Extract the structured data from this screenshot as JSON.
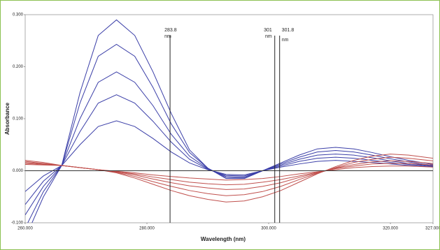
{
  "chart_data": {
    "type": "line",
    "xlabel": "Wavelength (nm)",
    "ylabel": "Absorbance",
    "x": [
      260,
      263,
      266,
      269,
      272,
      275,
      278,
      281,
      284,
      287,
      290,
      293,
      296,
      299,
      302,
      305,
      308,
      311,
      314,
      317,
      320,
      323,
      327
    ],
    "series": [
      {
        "color": "#3b3fa8",
        "values": [
          -0.13,
          -0.05,
          0.01,
          0.15,
          0.26,
          0.29,
          0.26,
          0.19,
          0.11,
          0.04,
          0.005,
          -0.015,
          -0.015,
          0.0,
          0.015,
          0.03,
          0.042,
          0.045,
          0.042,
          0.035,
          0.027,
          0.02,
          0.012
        ]
      },
      {
        "color": "#3b3fa8",
        "values": [
          -0.11,
          -0.04,
          0.01,
          0.13,
          0.22,
          0.243,
          0.22,
          0.16,
          0.09,
          0.035,
          0.005,
          -0.013,
          -0.014,
          0,
          0.013,
          0.026,
          0.036,
          0.039,
          0.036,
          0.03,
          0.023,
          0.017,
          0.01
        ]
      },
      {
        "color": "#3b3fa8",
        "values": [
          -0.085,
          -0.03,
          0.01,
          0.1,
          0.17,
          0.19,
          0.17,
          0.125,
          0.07,
          0.028,
          0.004,
          -0.011,
          -0.012,
          0,
          0.011,
          0.022,
          0.03,
          0.032,
          0.03,
          0.025,
          0.019,
          0.014,
          0.009
        ]
      },
      {
        "color": "#3b3fa8",
        "values": [
          -0.065,
          -0.02,
          0.01,
          0.075,
          0.13,
          0.146,
          0.13,
          0.095,
          0.055,
          0.022,
          0.003,
          -0.009,
          -0.01,
          0,
          0.009,
          0.018,
          0.024,
          0.026,
          0.024,
          0.02,
          0.016,
          0.012,
          0.008
        ]
      },
      {
        "color": "#3b3fa8",
        "values": [
          -0.04,
          -0.01,
          0.01,
          0.05,
          0.085,
          0.096,
          0.085,
          0.062,
          0.036,
          0.015,
          0.002,
          -0.007,
          -0.008,
          0,
          0.007,
          0.013,
          0.018,
          0.02,
          0.018,
          0.016,
          0.013,
          0.01,
          0.007
        ]
      },
      {
        "color": "#c0504d",
        "values": [
          0.02,
          0.016,
          0.01,
          0.006,
          0.002,
          -0.004,
          -0.014,
          -0.026,
          -0.038,
          -0.048,
          -0.055,
          -0.06,
          -0.058,
          -0.05,
          -0.038,
          -0.022,
          -0.006,
          0.008,
          0.02,
          0.028,
          0.032,
          0.03,
          0.024
        ]
      },
      {
        "color": "#c0504d",
        "values": [
          0.018,
          0.014,
          0.01,
          0.006,
          0.002,
          -0.003,
          -0.011,
          -0.021,
          -0.03,
          -0.038,
          -0.044,
          -0.048,
          -0.046,
          -0.04,
          -0.03,
          -0.017,
          -0.005,
          0.006,
          0.016,
          0.022,
          0.026,
          0.024,
          0.019
        ]
      },
      {
        "color": "#c0504d",
        "values": [
          0.016,
          0.013,
          0.01,
          0.006,
          0.002,
          -0.002,
          -0.008,
          -0.016,
          -0.023,
          -0.029,
          -0.033,
          -0.036,
          -0.035,
          -0.03,
          -0.023,
          -0.013,
          -0.004,
          0.005,
          0.012,
          0.017,
          0.019,
          0.018,
          0.014
        ]
      },
      {
        "color": "#c0504d",
        "values": [
          0.014,
          0.012,
          0.01,
          0.006,
          0.002,
          -0.002,
          -0.006,
          -0.012,
          -0.017,
          -0.022,
          -0.025,
          -0.027,
          -0.026,
          -0.022,
          -0.017,
          -0.01,
          -0.003,
          0.004,
          0.009,
          0.013,
          0.014,
          0.014,
          0.011
        ]
      },
      {
        "color": "#c0504d",
        "values": [
          0.012,
          0.011,
          0.01,
          0.006,
          0.002,
          -0.001,
          -0.004,
          -0.008,
          -0.011,
          -0.014,
          -0.016,
          -0.018,
          -0.017,
          -0.015,
          -0.011,
          -0.006,
          -0.002,
          0.002,
          0.006,
          0.008,
          0.009,
          0.009,
          0.007
        ]
      }
    ],
    "xlim": [
      260,
      327
    ],
    "xticks": [
      {
        "value": 260,
        "label": "260.000"
      },
      {
        "value": 280,
        "label": "280.000"
      },
      {
        "value": 300,
        "label": "300.000"
      },
      {
        "value": 320,
        "label": "320.000"
      },
      {
        "value": 327,
        "label": "327.000"
      }
    ],
    "ylim": [
      -0.1,
      0.3
    ],
    "yticks": [
      {
        "value": 0.3,
        "label": "0.300"
      },
      {
        "value": 0.2,
        "label": "0.200"
      },
      {
        "value": 0.1,
        "label": "0.100"
      },
      {
        "value": 0,
        "label": "0.000"
      },
      {
        "value": -0.1,
        "label": "-0.100"
      }
    ],
    "zero_line": true,
    "annotations": [
      {
        "x": 283.8,
        "label": "283.8",
        "unit": "nm"
      },
      {
        "x": 301,
        "label": "301",
        "unit": "nm"
      },
      {
        "x": 301.8,
        "label": "301.8",
        "unit": "nm"
      }
    ]
  }
}
